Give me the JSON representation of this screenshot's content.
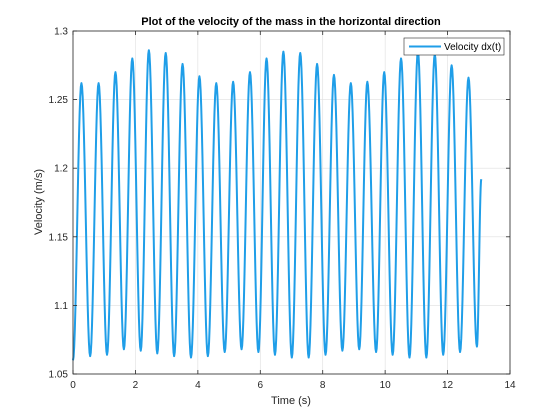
{
  "chart_data": {
    "type": "line",
    "title": "Plot of the velocity of the mass in the horizontal direction",
    "xlabel": "Time (s)",
    "ylabel": "Velocity (m/s)",
    "xlim": [
      0,
      14
    ],
    "ylim": [
      1.05,
      1.3
    ],
    "xticks": [
      0,
      2,
      4,
      6,
      8,
      10,
      12,
      14
    ],
    "yticks": [
      1.05,
      1.1,
      1.15,
      1.2,
      1.25,
      1.3
    ],
    "xtick_labels": [
      "0",
      "2",
      "4",
      "6",
      "8",
      "10",
      "12",
      "14"
    ],
    "ytick_labels": [
      "1.05",
      "1.1",
      "1.15",
      "1.2",
      "1.25",
      "1.3"
    ],
    "grid": true,
    "legend_position": "top-right",
    "series": [
      {
        "name": "Velocity dx(t)",
        "color": "#1f9ee8",
        "x_start": 0,
        "x_end": 13.08,
        "start_value": 1.06,
        "end_value": 1.192,
        "peaks": [
          {
            "x": 0.27,
            "y": 1.262
          },
          {
            "x": 0.82,
            "y": 1.262
          },
          {
            "x": 1.36,
            "y": 1.27
          },
          {
            "x": 1.9,
            "y": 1.28
          },
          {
            "x": 2.43,
            "y": 1.286
          },
          {
            "x": 2.97,
            "y": 1.284
          },
          {
            "x": 3.51,
            "y": 1.276
          },
          {
            "x": 4.05,
            "y": 1.267
          },
          {
            "x": 4.59,
            "y": 1.262
          },
          {
            "x": 5.13,
            "y": 1.263
          },
          {
            "x": 5.67,
            "y": 1.27
          },
          {
            "x": 6.2,
            "y": 1.28
          },
          {
            "x": 6.74,
            "y": 1.285
          },
          {
            "x": 7.28,
            "y": 1.284
          },
          {
            "x": 7.82,
            "y": 1.276
          },
          {
            "x": 8.36,
            "y": 1.268
          },
          {
            "x": 8.9,
            "y": 1.262
          },
          {
            "x": 9.43,
            "y": 1.263
          },
          {
            "x": 9.97,
            "y": 1.27
          },
          {
            "x": 10.51,
            "y": 1.28
          },
          {
            "x": 11.05,
            "y": 1.285
          },
          {
            "x": 11.59,
            "y": 1.283
          },
          {
            "x": 12.13,
            "y": 1.275
          },
          {
            "x": 12.67,
            "y": 1.266
          }
        ],
        "troughs": [
          {
            "x": 0.55,
            "y": 1.063
          },
          {
            "x": 1.09,
            "y": 1.064
          },
          {
            "x": 1.63,
            "y": 1.068
          },
          {
            "x": 2.17,
            "y": 1.067
          },
          {
            "x": 2.7,
            "y": 1.065
          },
          {
            "x": 3.24,
            "y": 1.063
          },
          {
            "x": 3.78,
            "y": 1.062
          },
          {
            "x": 4.32,
            "y": 1.063
          },
          {
            "x": 4.86,
            "y": 1.066
          },
          {
            "x": 5.4,
            "y": 1.068
          },
          {
            "x": 5.94,
            "y": 1.066
          },
          {
            "x": 6.47,
            "y": 1.064
          },
          {
            "x": 7.01,
            "y": 1.062
          },
          {
            "x": 7.55,
            "y": 1.062
          },
          {
            "x": 8.09,
            "y": 1.064
          },
          {
            "x": 8.63,
            "y": 1.067
          },
          {
            "x": 9.17,
            "y": 1.068
          },
          {
            "x": 9.71,
            "y": 1.066
          },
          {
            "x": 10.24,
            "y": 1.064
          },
          {
            "x": 10.78,
            "y": 1.062
          },
          {
            "x": 11.32,
            "y": 1.062
          },
          {
            "x": 11.86,
            "y": 1.064
          },
          {
            "x": 12.4,
            "y": 1.066
          },
          {
            "x": 12.94,
            "y": 1.07
          }
        ]
      }
    ]
  }
}
